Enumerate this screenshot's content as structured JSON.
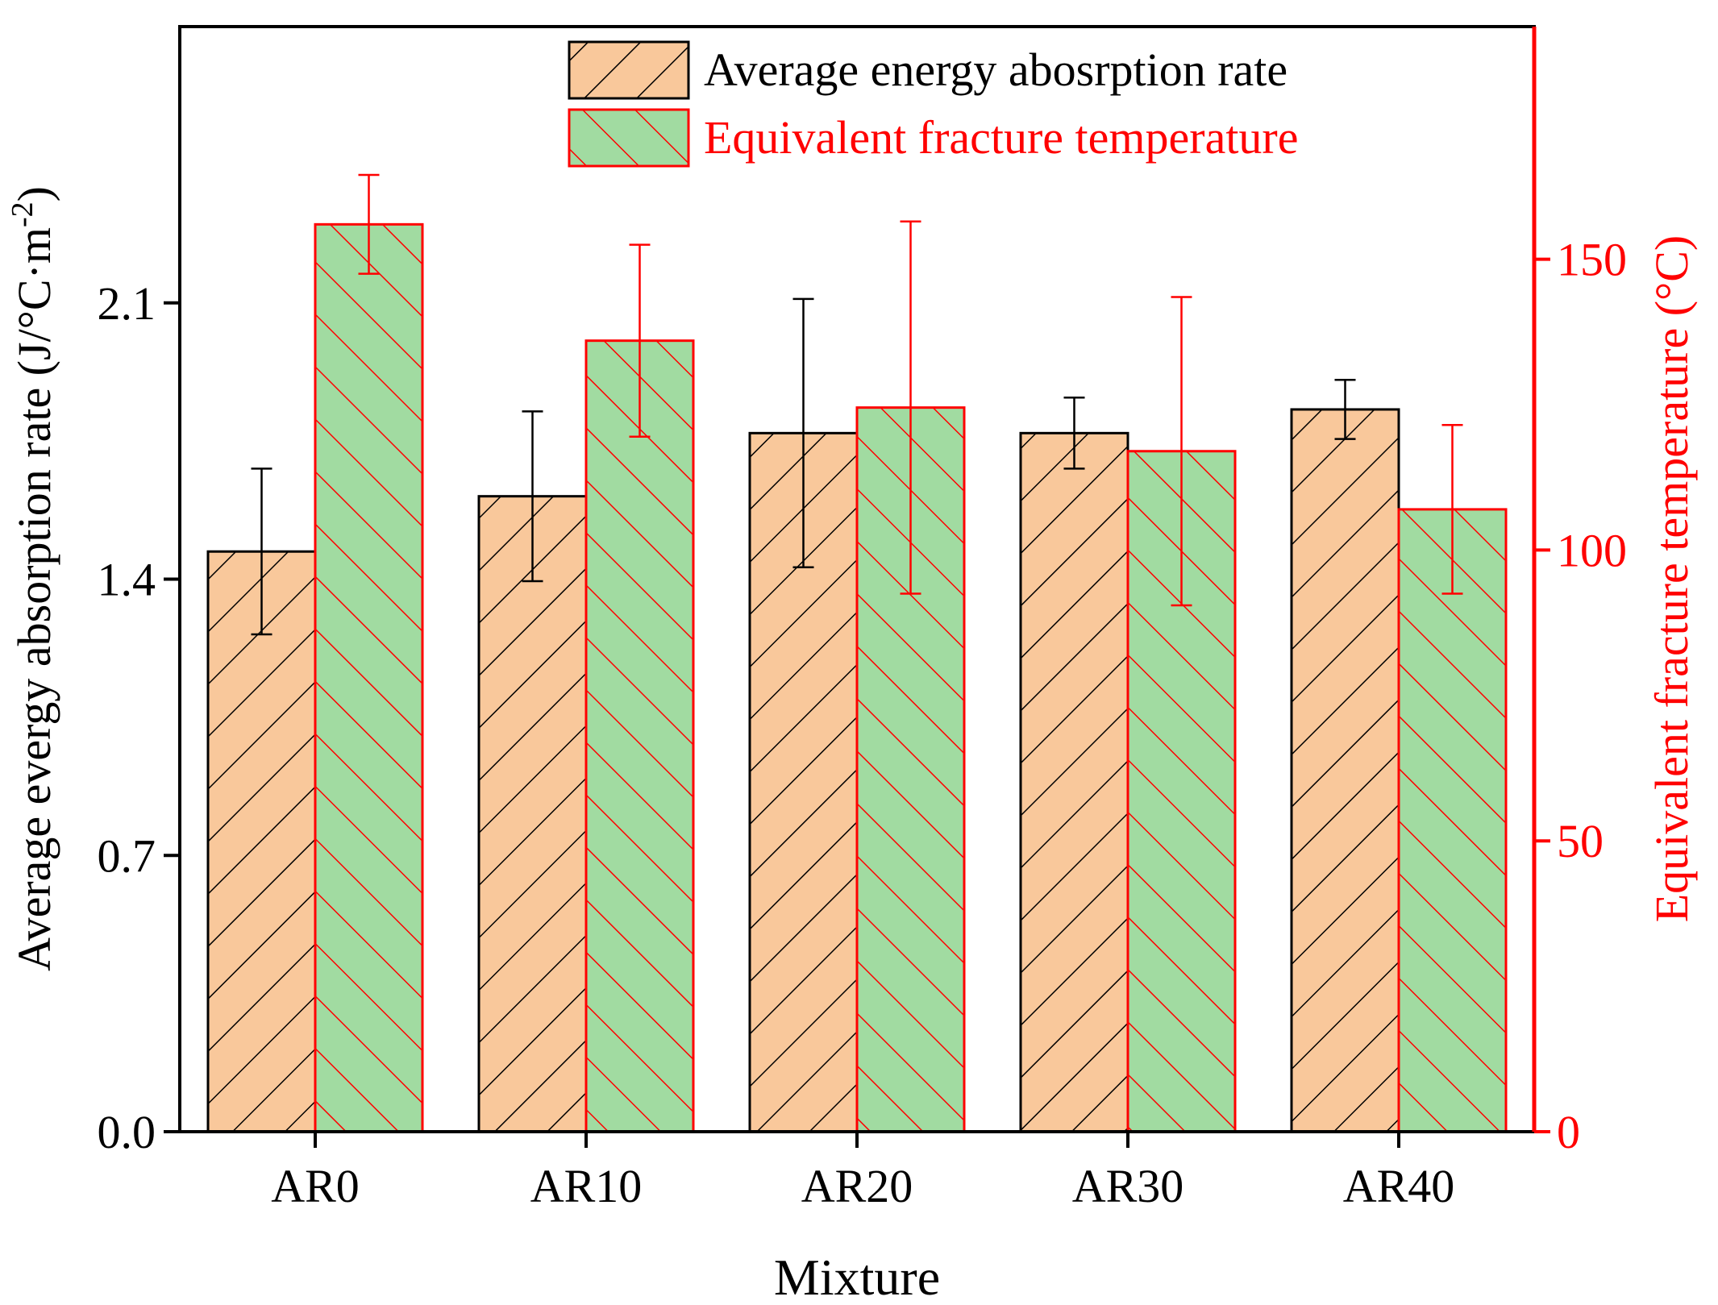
{
  "chart_data": {
    "type": "bar",
    "categories": [
      "AR0",
      "AR10",
      "AR20",
      "AR30",
      "AR40"
    ],
    "xlabel": "Mixture",
    "left_axis": {
      "label": "Average evergy absorption rate (J/°C·m",
      "label_sup": "-2",
      "label_close": ")",
      "range": [
        0,
        2.8
      ],
      "ticks": [
        0.0,
        0.7,
        1.4,
        2.1
      ],
      "tick_labels": [
        "0.0",
        "0.7",
        "1.4",
        "2.1"
      ],
      "color": "#000000"
    },
    "right_axis": {
      "label": "Equivalent fracture temperature (°C)",
      "range": [
        0,
        190
      ],
      "ticks": [
        0,
        50,
        100,
        150
      ],
      "tick_labels": [
        "0",
        "50",
        "100",
        "150"
      ],
      "color": "#ff0000"
    },
    "series": [
      {
        "name": "Average energy abosrption rate",
        "axis": "left",
        "values": [
          1.47,
          1.61,
          1.77,
          1.77,
          1.83
        ],
        "errors": [
          0.21,
          0.215,
          0.34,
          0.09,
          0.075
        ],
        "fill": "#f9c89b",
        "edge": "#000000",
        "hatch": "forward"
      },
      {
        "name": "Equivalent fracture temperature",
        "axis": "right",
        "values": [
          156,
          136,
          124.5,
          117,
          107
        ],
        "errors": [
          8.5,
          16.5,
          32,
          26.5,
          14.5
        ],
        "fill": "#a1dba1",
        "edge": "#ff0000",
        "hatch": "back"
      }
    ],
    "legend": {
      "placement": "top-center"
    }
  }
}
